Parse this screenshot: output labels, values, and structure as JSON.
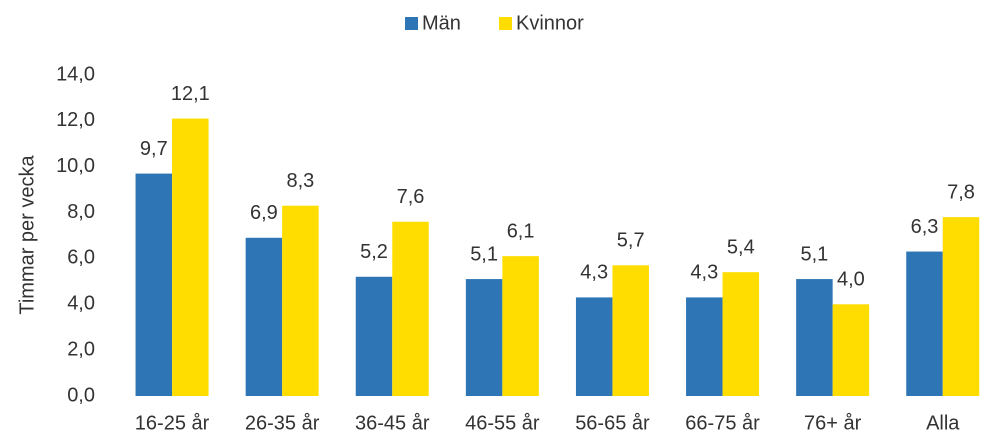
{
  "chart_data": {
    "type": "bar",
    "y_label": "Timmar per vecka",
    "categories": [
      "16-25 år",
      "26-35 år",
      "36-45 år",
      "46-55 år",
      "56-65 år",
      "66-75 år",
      "76+ år",
      "Alla"
    ],
    "series": [
      {
        "name": "Män",
        "color": "#2e75b6",
        "values": [
          9.7,
          6.9,
          5.2,
          5.1,
          4.3,
          4.3,
          5.1,
          6.3
        ],
        "value_labels": [
          "9,7",
          "6,9",
          "5,2",
          "5,1",
          "4,3",
          "4,3",
          "5,1",
          "6,3"
        ]
      },
      {
        "name": "Kvinnor",
        "color": "#ffdd00",
        "values": [
          12.1,
          8.3,
          7.6,
          6.1,
          5.7,
          5.4,
          4.0,
          7.8
        ],
        "value_labels": [
          "12,1",
          "8,3",
          "7,6",
          "6,1",
          "5,7",
          "5,4",
          "4,0",
          "7,8"
        ]
      }
    ],
    "ylim": [
      0,
      14
    ],
    "yticks": [
      {
        "value": 0,
        "label": "0,0"
      },
      {
        "value": 2,
        "label": "2,0"
      },
      {
        "value": 4,
        "label": "4,0"
      },
      {
        "value": 6,
        "label": "6,0"
      },
      {
        "value": 8,
        "label": "8,0"
      },
      {
        "value": 10,
        "label": "10,0"
      },
      {
        "value": 12,
        "label": "12,0"
      },
      {
        "value": 14,
        "label": "14,0"
      }
    ],
    "grid": false,
    "legend": "top"
  }
}
